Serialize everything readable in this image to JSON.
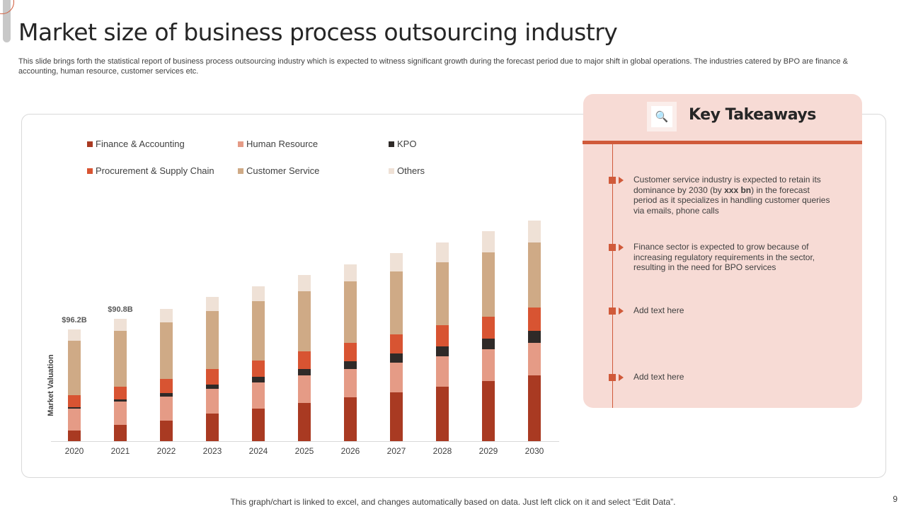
{
  "title": "Market size of business process outsourcing industry",
  "subtitle": "This slide brings forth the statistical report of business process outsourcing industry which is expected to witness significant growth during the forecast period due to major shift in global operations. The industries catered by BPO are finance & accounting, human resource, customer services etc.",
  "chart_data": {
    "type": "bar",
    "stacked": true,
    "title": "",
    "xlabel": "",
    "ylabel": "Market Valuation",
    "ylim": [
      0,
      320
    ],
    "grid": false,
    "legend_position": "top-left",
    "categories": [
      "2020",
      "2021",
      "2022",
      "2023",
      "2024",
      "2025",
      "2026",
      "2027",
      "2028",
      "2029",
      "2030"
    ],
    "series": [
      {
        "name": "Finance & Accounting",
        "color": "#a93a22",
        "values": [
          15,
          23,
          29,
          39,
          46,
          54,
          62,
          69,
          77,
          85,
          93
        ]
      },
      {
        "name": "Human Resource",
        "color": "#e59b86",
        "values": [
          31,
          33,
          34,
          35,
          37,
          39,
          40,
          42,
          43,
          45,
          46
        ]
      },
      {
        "name": "KPO",
        "color": "#2f2a28",
        "values": [
          2,
          3,
          5,
          6,
          8,
          9,
          11,
          13,
          14,
          15,
          17
        ]
      },
      {
        "name": "Procurement & Supply Chain",
        "color": "#d85432",
        "values": [
          17,
          18,
          20,
          22,
          23,
          25,
          26,
          27,
          30,
          31,
          33
        ]
      },
      {
        "name": "Customer Service",
        "color": "#cfaa86",
        "values": [
          77,
          79,
          80,
          82,
          84,
          85,
          87,
          89,
          89,
          91,
          92
        ]
      },
      {
        "name": "Others",
        "color": "#efe1d6",
        "values": [
          16,
          17,
          19,
          20,
          21,
          23,
          24,
          26,
          28,
          30,
          31
        ]
      }
    ],
    "annotations": [
      {
        "category": "2020",
        "text": "$96.2B"
      },
      {
        "category": "2021",
        "text": "$90.8B"
      }
    ]
  },
  "takeaways": {
    "title": "Key Takeaways",
    "icon": "magnifier-bug-icon",
    "items": [
      {
        "pre": "Customer service industry is expected to retain its dominance by 2030 (by ",
        "bold": "xxx bn",
        "post": ") in the forecast period as it specializes in handling customer queries via emails, phone calls"
      },
      {
        "pre": "Finance sector is expected to grow because of increasing regulatory requirements in the sector, resulting in the need for BPO services",
        "bold": "",
        "post": ""
      },
      {
        "pre": "Add text here",
        "bold": "",
        "post": ""
      },
      {
        "pre": "Add text here",
        "bold": "",
        "post": ""
      }
    ]
  },
  "footer": "This graph/chart is linked to excel,  and changes automatically based on data. Just left click on it and select “Edit Data”.",
  "page_number": "9"
}
